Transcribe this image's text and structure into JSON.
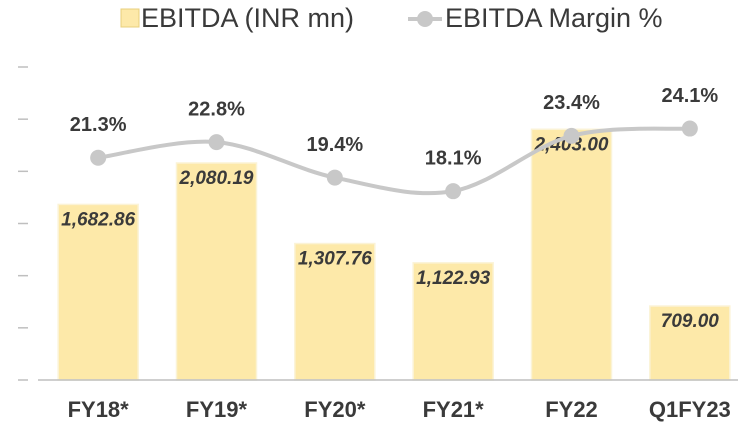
{
  "chart_data": {
    "type": "bar_line",
    "categories": [
      "FY18*",
      "FY19*",
      "FY20*",
      "FY21*",
      "FY22",
      "Q1FY23"
    ],
    "series": [
      {
        "name": "EBITDA (INR mn)",
        "type": "bar",
        "color": "#fde9a9",
        "values": [
          1682.86,
          2080.19,
          1307.76,
          1122.93,
          2403.0,
          709.0
        ],
        "value_labels": [
          "1,682.86",
          "2,080.19",
          "1,307.76",
          "1,122.93",
          "2,403.00",
          "709.00"
        ]
      },
      {
        "name": "EBITDA Margin %",
        "type": "line",
        "color": "#c8c8c8",
        "axis": "y2",
        "values": [
          21.3,
          22.8,
          19.4,
          18.1,
          23.4,
          24.1
        ],
        "value_labels": [
          "21.3%",
          "22.8%",
          "19.4%",
          "18.1%",
          "23.4%",
          "24.1%"
        ]
      }
    ],
    "ylim": [
      0,
      3000
    ],
    "yticks": [
      0,
      500,
      1000,
      1500,
      2000,
      2500,
      3000
    ],
    "y2lim": [
      0,
      30
    ],
    "legend": "top"
  }
}
